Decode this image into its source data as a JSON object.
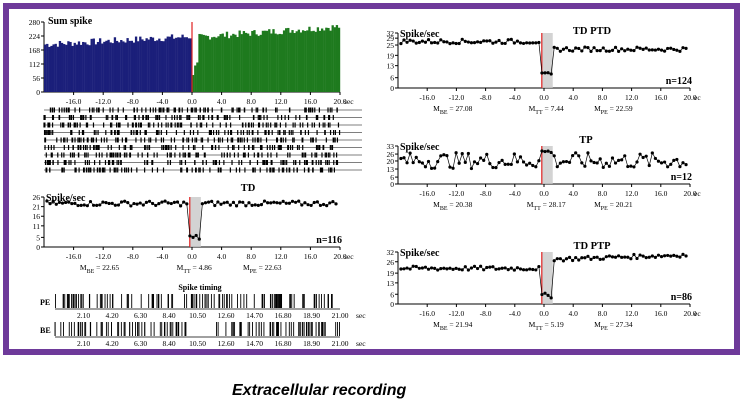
{
  "caption": "Extracellular recording",
  "colors": {
    "frame": "#6e3a9a",
    "before_bars": "#1b1f7a",
    "after_bars": "#1e7a1e",
    "event_line": "#e02020",
    "shade": "#c8c8c8"
  },
  "chart_data": [
    {
      "id": "sum_spike",
      "type": "bar",
      "title": "Sum spike",
      "xlabel": "sec",
      "x_ticks": [
        "-16.0",
        "-12.0",
        "-8.0",
        "-4.0",
        "0.0",
        "4.0",
        "8.0",
        "12.0",
        "16.0",
        "20.0"
      ],
      "y_ticks": [
        "280",
        "224",
        "168",
        "112",
        "56",
        "0"
      ],
      "ylim": [
        0,
        280
      ],
      "xlim": [
        -20,
        20
      ],
      "series": [
        {
          "segment": "before",
          "x_range": [
            -20,
            0
          ],
          "mean": 205,
          "start": 190,
          "end": 222
        },
        {
          "segment": "after",
          "x_range": [
            0,
            20
          ],
          "mean": 240,
          "start": 218,
          "end": 262
        }
      ],
      "raster_rows": 9
    },
    {
      "id": "td",
      "type": "scatter",
      "title": "TD",
      "ylabel": "Spike/sec",
      "xlabel": "sec",
      "x_ticks": [
        "-16.0",
        "-12.0",
        "-8.0",
        "-4.0",
        "0.0",
        "4.0",
        "8.0",
        "12.0",
        "16.0",
        "20.0"
      ],
      "y_ticks": [
        "26",
        "21",
        "16",
        "11",
        "5",
        "0"
      ],
      "ylim": [
        0,
        26
      ],
      "xlim": [
        -20,
        20
      ],
      "n": "n=116",
      "m_be": "22.65",
      "m_tt": "4.86",
      "m_pe": "22.63",
      "segments": {
        "before": 22.65,
        "transient": 4.86,
        "after": 22.63
      }
    },
    {
      "id": "td_ptd",
      "type": "scatter",
      "title": "TD PTD",
      "ylabel": "Spike/sec",
      "xlabel": "ec",
      "x_ticks": [
        "-16.0",
        "-12.0",
        "-8.0",
        "-4.0",
        "0.0",
        "4.0",
        "8.0",
        "12.0",
        "16.0",
        "20.0"
      ],
      "y_ticks": [
        "32",
        "29",
        "25",
        "19",
        "13",
        "6",
        "0"
      ],
      "ylim": [
        0,
        32
      ],
      "xlim": [
        -20,
        20
      ],
      "n": "n=124",
      "m_be": "27.08",
      "m_tt": "7.44",
      "m_pe": "22.59",
      "segments": {
        "before": 27.08,
        "transient": 7.44,
        "after": 22.59
      }
    },
    {
      "id": "tp",
      "type": "scatter",
      "title": "TP",
      "ylabel": "Spike/sec",
      "xlabel": "ec",
      "x_ticks": [
        "-16.0",
        "-12.0",
        "-8.0",
        "-4.0",
        "0.0",
        "4.0",
        "8.0",
        "12.0",
        "16.0",
        "20.0"
      ],
      "y_ticks": [
        "33",
        "26",
        "20",
        "13",
        "6",
        "0"
      ],
      "ylim": [
        0,
        33
      ],
      "xlim": [
        -20,
        20
      ],
      "n": "n=12",
      "m_be": "20.38",
      "m_tt": "28.17",
      "m_pe": "20.21",
      "segments": {
        "before": 20.38,
        "transient": 28.17,
        "after": 20.21
      }
    },
    {
      "id": "td_ptp",
      "type": "scatter",
      "title": "TD PTP",
      "ylabel": "Spike/sec",
      "xlabel": "ec",
      "x_ticks": [
        "-16.0",
        "-12.0",
        "-8.0",
        "-4.0",
        "0.0",
        "4.0",
        "8.0",
        "12.0",
        "16.0",
        "20.0"
      ],
      "y_ticks": [
        "32",
        "26",
        "19",
        "13",
        "6",
        "0"
      ],
      "ylim": [
        0,
        32
      ],
      "xlim": [
        -20,
        20
      ],
      "n": "n=86",
      "m_be": "21.94",
      "m_tt": "5.19",
      "m_pe": "27.34",
      "segments": {
        "before": 21.94,
        "transient": 5.19,
        "after": 27.34
      }
    },
    {
      "id": "spike_timing",
      "type": "raster",
      "title": "Spike timing",
      "xlabel": "sec",
      "rows": [
        "PE",
        "BE"
      ],
      "x_ticks": [
        "2.10",
        "4.20",
        "6.30",
        "8.40",
        "10.50",
        "12.60",
        "14.70",
        "16.80",
        "18.90",
        "21.00"
      ],
      "xlim": [
        0,
        21
      ]
    }
  ]
}
